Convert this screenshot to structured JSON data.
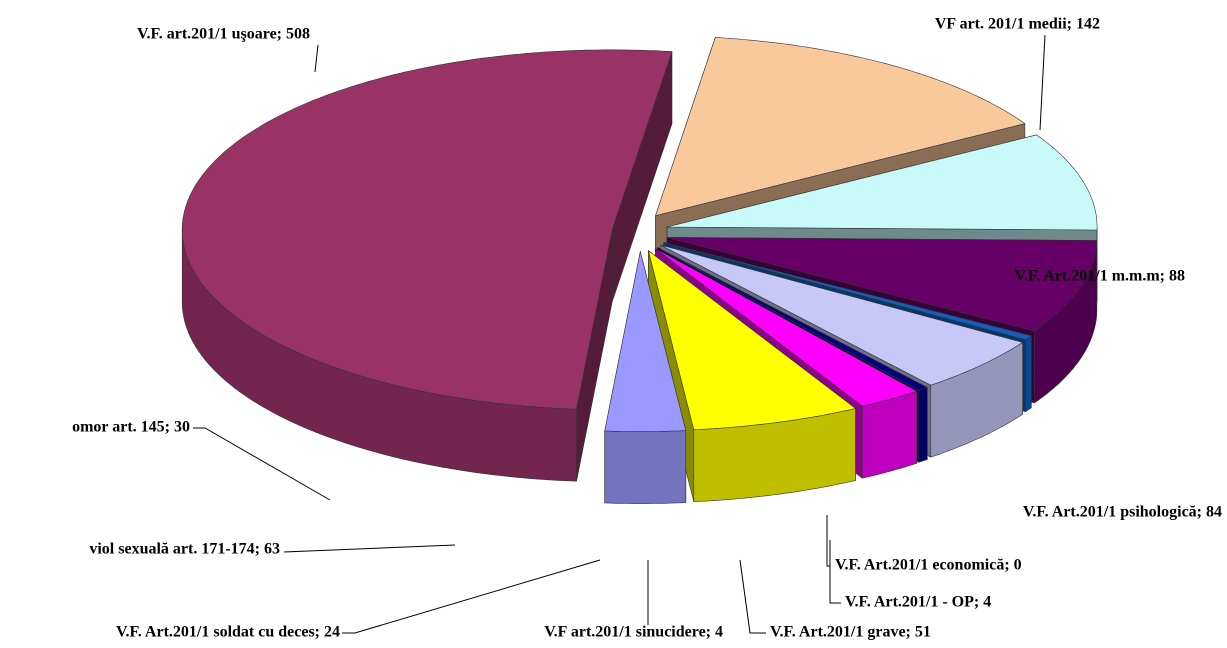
{
  "chart_data": {
    "type": "pie3d",
    "values": [
      142,
      88,
      84,
      0,
      4,
      51,
      4,
      24,
      63,
      30,
      508
    ],
    "value_labels": [
      "VF art. 201/1 medii; 142",
      "V.F. Art.201/1 m.m.m; 88",
      "V.F. Art.201/1 psihologică; 84",
      "V.F. Art.201/1 economică; 0",
      "V.F. Art.201/1 - OP; 4",
      "V.F. Art.201/1 grave; 51",
      "V.F art.201/1 sinucidere; 4",
      "V.F. Art.201/1 soldat cu deces; 24",
      "viol sexuală art. 171-174; 63",
      "omor art. 145; 30",
      "V.F. art.201/1 uşoare; 508"
    ],
    "colors": [
      "#f9c89b",
      "#c9fafa",
      "#660066",
      "#0070c0",
      "#1060c0",
      "#c8c8f8",
      "#000080",
      "#ff00ff",
      "#ffff00",
      "#9999ff",
      "#993366"
    ]
  }
}
